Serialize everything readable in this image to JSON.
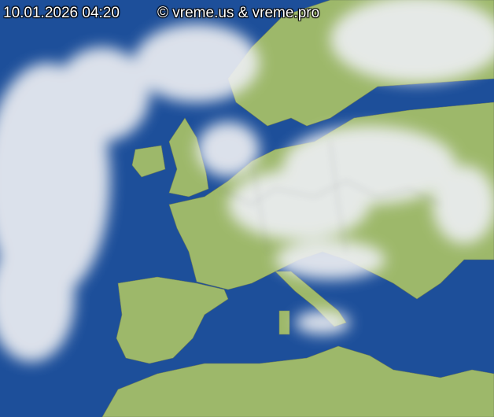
{
  "timestamp": "10.01.2026 04:20",
  "copyright": "© vreme.us & vreme.pro",
  "colors": {
    "sea": "#1d4f9a",
    "land": "#9db86a",
    "cloud": "#e8eaee",
    "borders": "#5a5a6a"
  }
}
